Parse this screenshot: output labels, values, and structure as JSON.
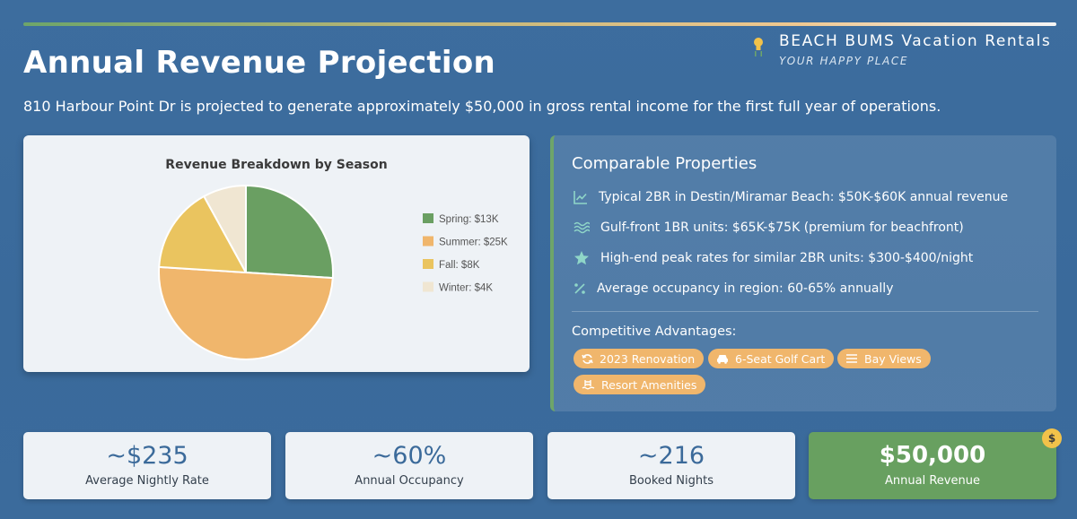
{
  "brand": {
    "name": "BEACH BUMS Vacation Rentals",
    "tagline": "YOUR HAPPY PLACE",
    "icon": "lightbulb-icon"
  },
  "header": {
    "title": "Annual Revenue Projection",
    "subtitle": "810 Harbour Point Dr is projected to generate approximately $50,000 in gross rental income for the first full year of operations."
  },
  "chart_data": {
    "type": "pie",
    "title": "Revenue Breakdown by Season",
    "categories": [
      "Spring",
      "Summer",
      "Fall",
      "Winter"
    ],
    "values": [
      13,
      25,
      8,
      4
    ],
    "legend": [
      "Spring: $13K",
      "Summer: $25K",
      "Fall: $8K",
      "Winter: $4K"
    ],
    "colors": [
      "#6a9f62",
      "#f0b66c",
      "#eac45f",
      "#f0e6d2"
    ],
    "legend_position": "right"
  },
  "comparables": {
    "title": "Comparable Properties",
    "items": [
      {
        "icon": "chart-line-icon",
        "text": "Typical 2BR in Destin/Miramar Beach: $50K-$60K annual revenue"
      },
      {
        "icon": "water-waves-icon",
        "text": "Gulf-front 1BR units: $65K-$75K (premium for beachfront)"
      },
      {
        "icon": "star-icon",
        "text": "High-end peak rates for similar 2BR units: $300-$400/night"
      },
      {
        "icon": "percent-icon",
        "text": "Average occupancy in region: 60-65% annually"
      }
    ],
    "advantages_title": "Competitive Advantages:",
    "advantages": [
      {
        "icon": "refresh-icon",
        "label": "2023 Renovation"
      },
      {
        "icon": "car-icon",
        "label": "6-Seat Golf Cart"
      },
      {
        "icon": "waves-icon",
        "label": "Bay Views"
      },
      {
        "icon": "pool-icon",
        "label": "Resort Amenities"
      }
    ]
  },
  "stats": [
    {
      "value": "~$235",
      "label": "Average Nightly Rate"
    },
    {
      "value": "~60%",
      "label": "Annual Occupancy"
    },
    {
      "value": "~216",
      "label": "Booked Nights"
    },
    {
      "value": "$50,000",
      "label": "Annual Revenue",
      "badge": "$"
    }
  ],
  "colors": {
    "background": "#3b6b9c",
    "accent_green": "#68a060",
    "accent_orange": "#f0b66c",
    "card": "#eef2f6"
  }
}
